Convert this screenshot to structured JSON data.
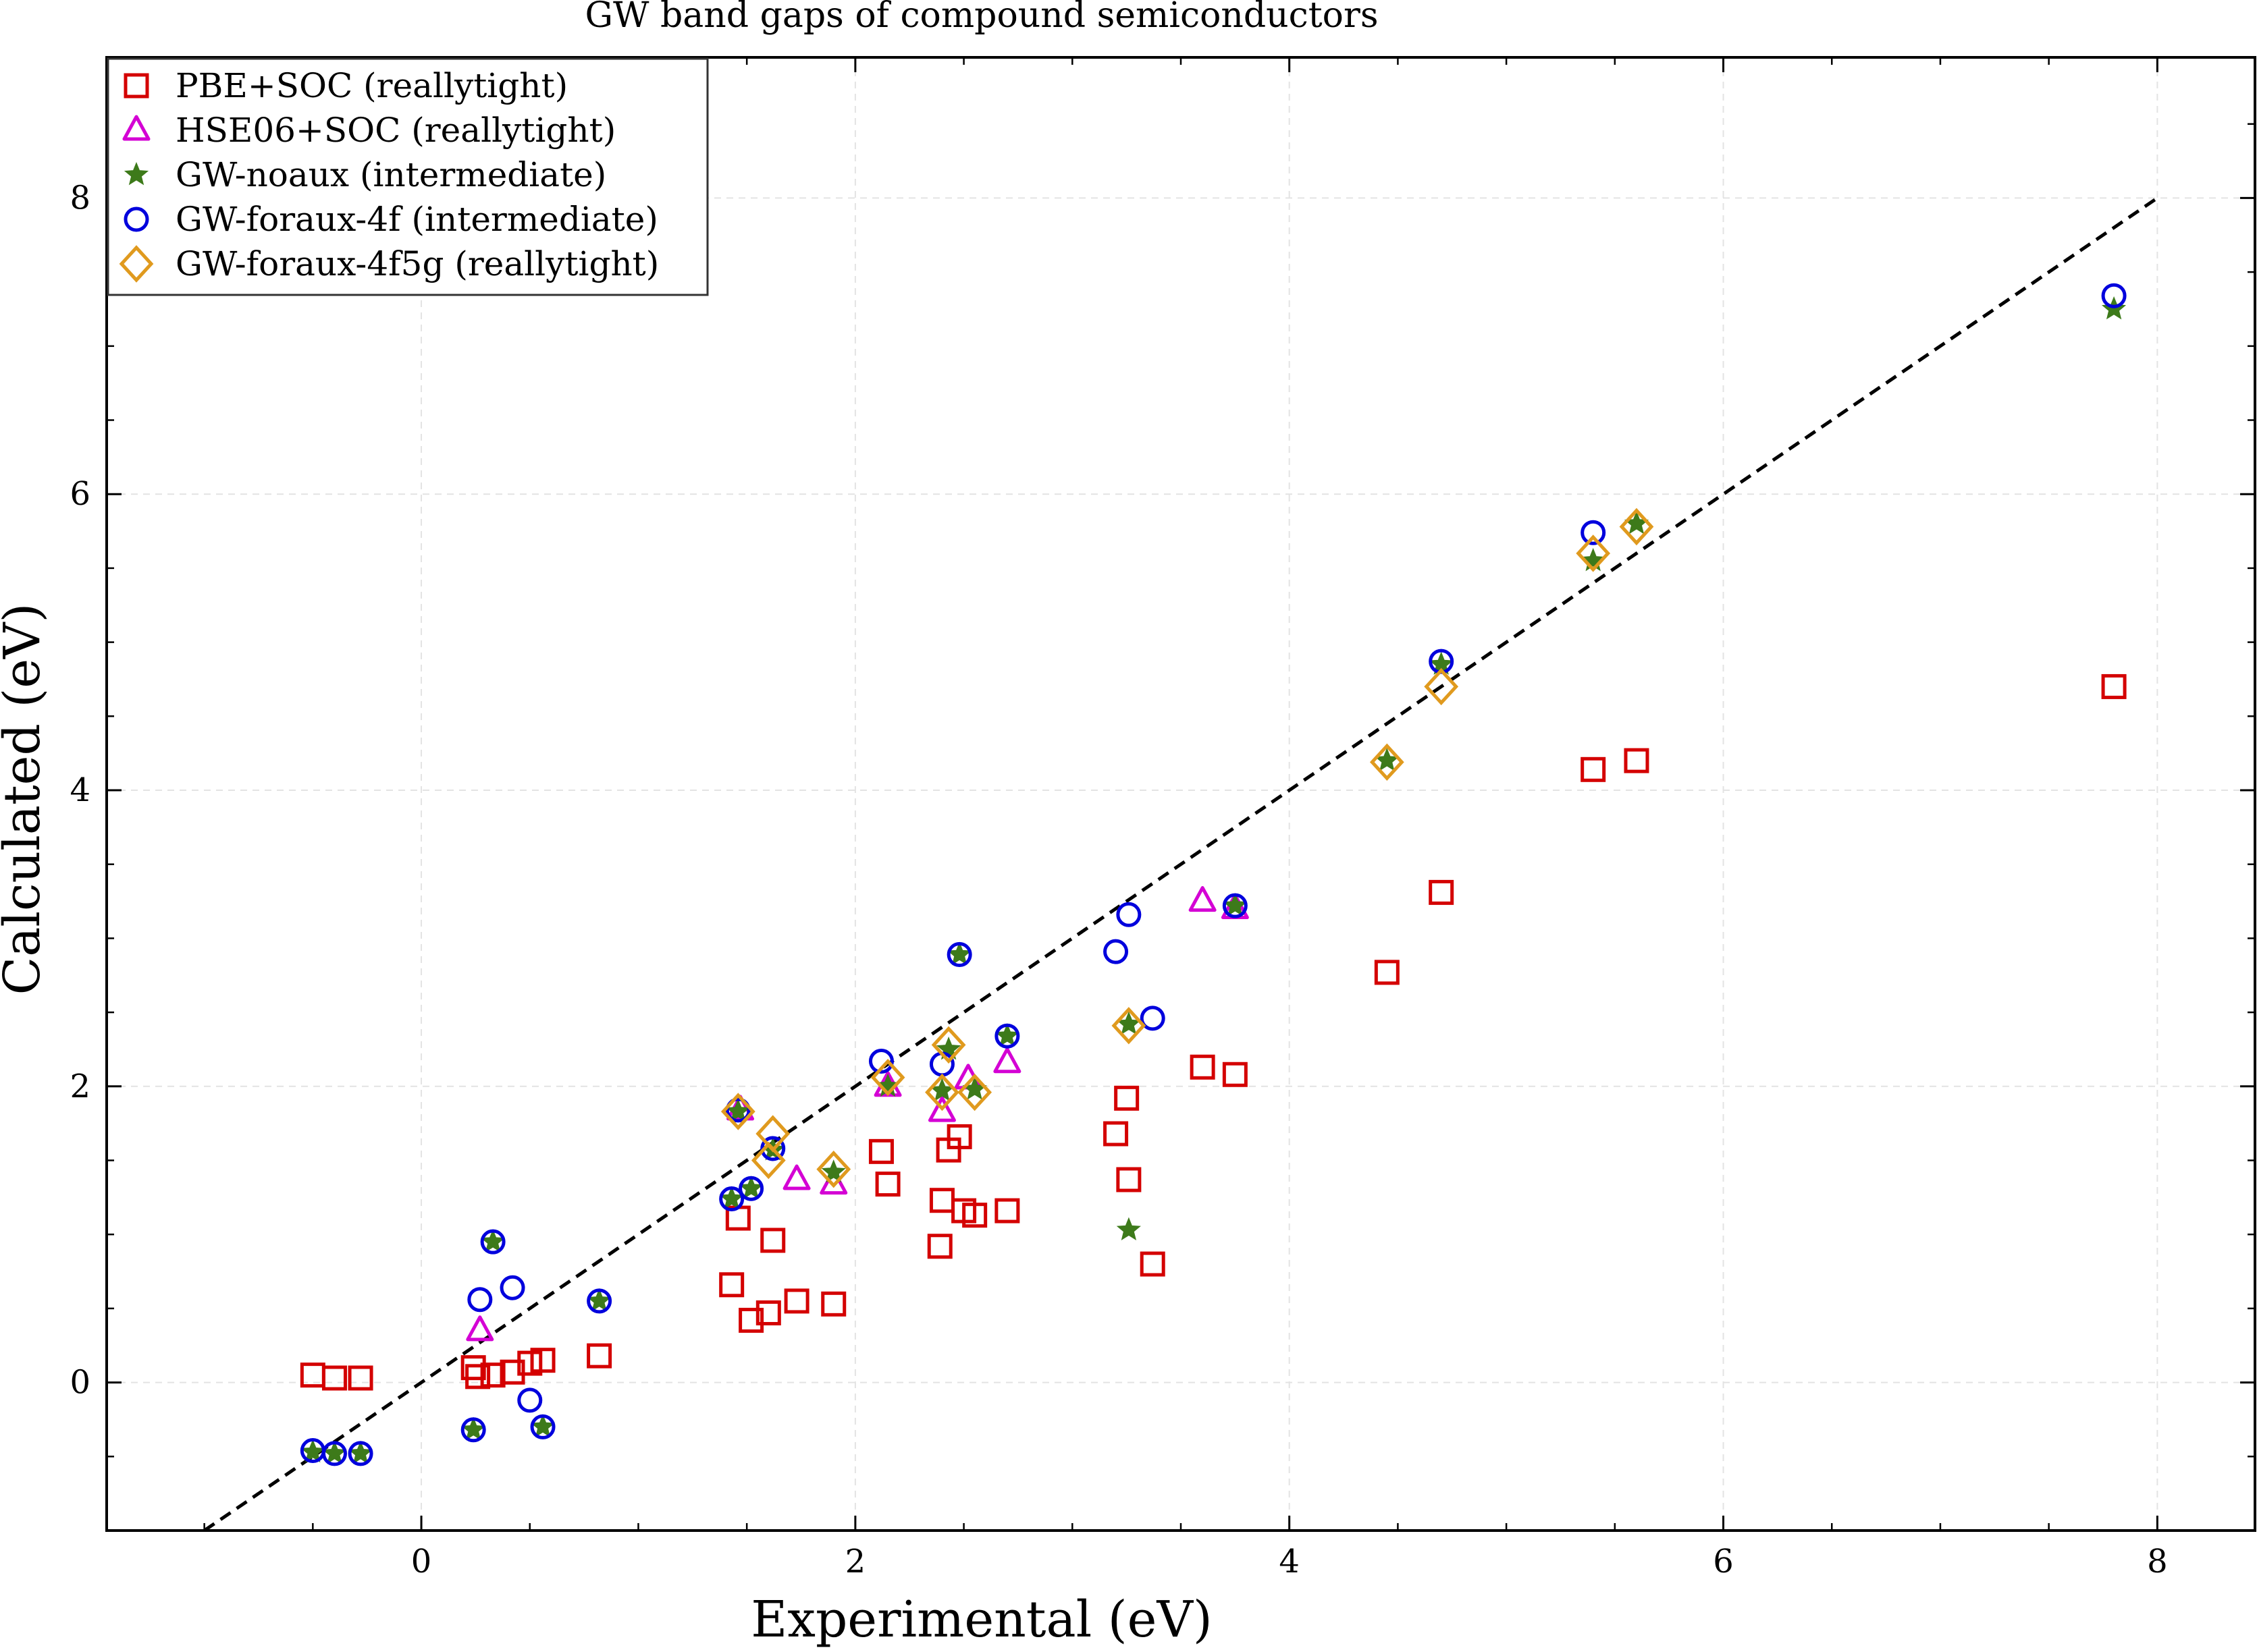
{
  "chart_data": {
    "type": "scatter",
    "title": "GW band gaps of compound semiconductors",
    "xlabel": "Experimental (eV)",
    "ylabel": "Calculated (eV)",
    "xlim": [
      -1.45,
      8.45
    ],
    "ylim": [
      -1.0,
      8.95
    ],
    "x_ticks": [
      0,
      2,
      4,
      6,
      8
    ],
    "y_ticks": [
      0,
      2,
      4,
      6,
      8
    ],
    "x_tick_labels": [
      "0",
      "2",
      "4",
      "6",
      "8"
    ],
    "y_tick_labels": [
      "0",
      "2",
      "4",
      "6",
      "8"
    ],
    "grid": true,
    "legend_position": "top-left",
    "reference_line": {
      "style": "dashed",
      "color": "#000000",
      "x": [
        -1.0,
        8.0
      ],
      "y": [
        -1.0,
        8.0
      ]
    },
    "series": [
      {
        "name": "PBE+SOC (reallytight)",
        "marker": "square",
        "color": "#d40000",
        "points": [
          [
            -0.5,
            0.05
          ],
          [
            -0.4,
            0.03
          ],
          [
            -0.28,
            0.03
          ],
          [
            0.24,
            0.1
          ],
          [
            0.26,
            0.04
          ],
          [
            0.33,
            0.05
          ],
          [
            0.42,
            0.07
          ],
          [
            0.5,
            0.13
          ],
          [
            0.56,
            0.15
          ],
          [
            0.82,
            0.18
          ],
          [
            1.43,
            0.66
          ],
          [
            1.46,
            1.11
          ],
          [
            1.52,
            0.42
          ],
          [
            1.6,
            0.47
          ],
          [
            1.62,
            0.96
          ],
          [
            1.73,
            0.55
          ],
          [
            1.9,
            0.53
          ],
          [
            2.12,
            1.56
          ],
          [
            2.15,
            1.34
          ],
          [
            2.39,
            0.92
          ],
          [
            2.4,
            1.23
          ],
          [
            2.43,
            1.57
          ],
          [
            2.48,
            1.66
          ],
          [
            2.5,
            1.16
          ],
          [
            2.55,
            1.13
          ],
          [
            2.7,
            1.16
          ],
          [
            3.2,
            1.68
          ],
          [
            3.25,
            1.92
          ],
          [
            3.26,
            1.37
          ],
          [
            3.37,
            0.8
          ],
          [
            3.6,
            2.13
          ],
          [
            3.75,
            2.08
          ],
          [
            4.45,
            2.77
          ],
          [
            4.7,
            3.31
          ],
          [
            5.4,
            4.14
          ],
          [
            5.6,
            4.2
          ],
          [
            7.8,
            4.7
          ]
        ]
      },
      {
        "name": "HSE06+SOC (reallytight)",
        "marker": "triangle",
        "color": "#d400d4",
        "points": [
          [
            0.27,
            0.35
          ],
          [
            1.47,
            1.84
          ],
          [
            1.73,
            1.37
          ],
          [
            1.9,
            1.34
          ],
          [
            2.15,
            2.0
          ],
          [
            2.4,
            1.83
          ],
          [
            2.52,
            2.05
          ],
          [
            2.7,
            2.16
          ],
          [
            3.6,
            3.25
          ],
          [
            3.75,
            3.2
          ]
        ]
      },
      {
        "name": "GW-noaux (intermediate)",
        "marker": "star",
        "color": "#3d7a1a",
        "points": [
          [
            -0.5,
            -0.47
          ],
          [
            -0.4,
            -0.48
          ],
          [
            -0.28,
            -0.48
          ],
          [
            0.24,
            -0.32
          ],
          [
            0.33,
            0.95
          ],
          [
            0.56,
            -0.3
          ],
          [
            0.82,
            0.55
          ],
          [
            1.43,
            1.24
          ],
          [
            1.46,
            1.83
          ],
          [
            1.52,
            1.31
          ],
          [
            1.62,
            1.57
          ],
          [
            1.9,
            1.42
          ],
          [
            2.15,
            2.0
          ],
          [
            2.4,
            1.97
          ],
          [
            2.43,
            2.25
          ],
          [
            2.48,
            2.89
          ],
          [
            2.55,
            1.98
          ],
          [
            2.7,
            2.34
          ],
          [
            3.26,
            1.03
          ],
          [
            3.26,
            2.42
          ],
          [
            3.75,
            3.22
          ],
          [
            4.45,
            4.2
          ],
          [
            4.7,
            4.85
          ],
          [
            5.4,
            5.55
          ],
          [
            5.6,
            5.8
          ],
          [
            7.8,
            7.25
          ]
        ]
      },
      {
        "name": "GW-foraux-4f (intermediate)",
        "marker": "circle",
        "color": "#0000dd",
        "points": [
          [
            -0.5,
            -0.46
          ],
          [
            -0.4,
            -0.48
          ],
          [
            -0.28,
            -0.48
          ],
          [
            0.24,
            -0.32
          ],
          [
            0.27,
            0.56
          ],
          [
            0.33,
            0.95
          ],
          [
            0.42,
            0.64
          ],
          [
            0.5,
            -0.12
          ],
          [
            0.56,
            -0.3
          ],
          [
            0.82,
            0.55
          ],
          [
            1.43,
            1.24
          ],
          [
            1.46,
            1.84
          ],
          [
            1.52,
            1.31
          ],
          [
            1.62,
            1.58
          ],
          [
            2.12,
            2.17
          ],
          [
            2.4,
            2.15
          ],
          [
            2.48,
            2.89
          ],
          [
            2.7,
            2.34
          ],
          [
            3.2,
            2.91
          ],
          [
            3.26,
            3.16
          ],
          [
            3.37,
            2.46
          ],
          [
            3.75,
            3.22
          ],
          [
            4.7,
            4.87
          ],
          [
            5.4,
            5.74
          ],
          [
            7.8,
            7.34
          ]
        ]
      },
      {
        "name": "GW-foraux-4f5g (reallytight)",
        "marker": "diamond",
        "color": "#e09a1e",
        "points": [
          [
            1.46,
            1.83
          ],
          [
            1.6,
            1.5
          ],
          [
            1.62,
            1.68
          ],
          [
            1.9,
            1.44
          ],
          [
            2.15,
            2.06
          ],
          [
            2.4,
            1.96
          ],
          [
            2.43,
            2.28
          ],
          [
            2.55,
            1.96
          ],
          [
            3.26,
            2.41
          ],
          [
            4.45,
            4.19
          ],
          [
            4.7,
            4.7
          ],
          [
            5.4,
            5.6
          ],
          [
            5.6,
            5.78
          ]
        ]
      }
    ]
  }
}
